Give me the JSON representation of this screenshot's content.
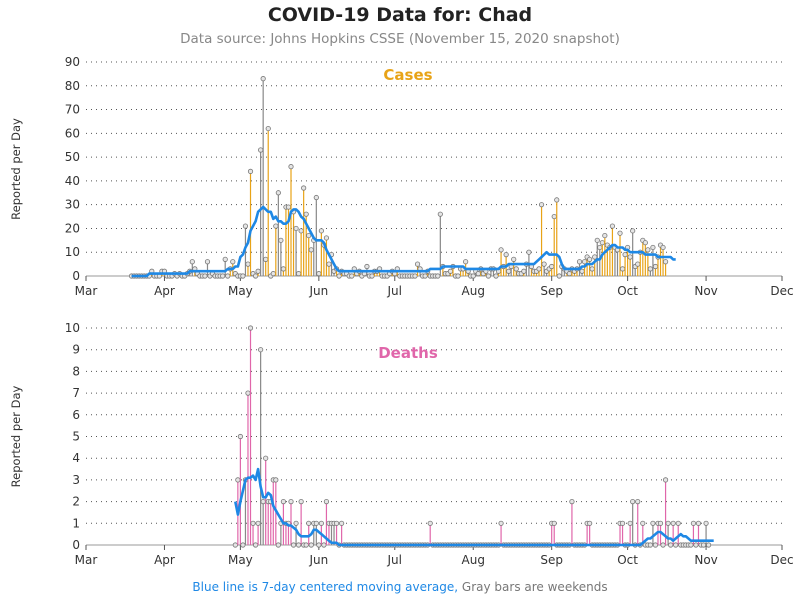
{
  "title": "COVID-19 Data for: Chad",
  "subtitle": "Data source: Johns Hopkins CSSE (November 15, 2020 snapshot)",
  "footer": {
    "blue_text": "Blue line is 7-day centered moving average,",
    "gray_text": " Gray bars are weekends"
  },
  "colors": {
    "cases": "#e8a317",
    "deaths": "#e066aa",
    "weekend": "#888888",
    "moving_average": "#1e88e5",
    "grid": "#555555"
  },
  "chart_data": [
    {
      "type": "bar",
      "title": "Cases",
      "ylabel": "Reported per Day",
      "ylim": [
        0,
        90
      ],
      "yticks": [
        0,
        10,
        20,
        30,
        40,
        50,
        60,
        70,
        80,
        90
      ],
      "xlim": [
        "2020-03-01",
        "2020-12-01"
      ],
      "xticks": [
        "Mar",
        "Apr",
        "May",
        "Jun",
        "Jul",
        "Aug",
        "Sep",
        "Oct",
        "Nov",
        "Dec"
      ],
      "grid": "horizontal dotted",
      "start_date": "2020-03-19",
      "series": [
        {
          "values": [
            0,
            0,
            0,
            0,
            0,
            0,
            0,
            0,
            2,
            0,
            0,
            0,
            2,
            2,
            0,
            0,
            0,
            1,
            0,
            1,
            0,
            0,
            1,
            2,
            6,
            3,
            1,
            0,
            0,
            0,
            6,
            0,
            1,
            0,
            0,
            0,
            0,
            7,
            0,
            3,
            6,
            1,
            0,
            0,
            0,
            21,
            5,
            44,
            1,
            0,
            2,
            53,
            83,
            7,
            62,
            0,
            1,
            21,
            35,
            15,
            3,
            29,
            29,
            46,
            27,
            20,
            1,
            19,
            37,
            26,
            17,
            11,
            15,
            33,
            1,
            19,
            13,
            16,
            5,
            9,
            2,
            3,
            0,
            2,
            1,
            1,
            0,
            0,
            3,
            1,
            2,
            0,
            1,
            4,
            0,
            0,
            2,
            2,
            3,
            0,
            0,
            0,
            1,
            2,
            1,
            3,
            0,
            0,
            0,
            0,
            0,
            0,
            0,
            5,
            3,
            0,
            0,
            2,
            0,
            0,
            0,
            0,
            26,
            4,
            1,
            1,
            2,
            4,
            0,
            0,
            3,
            3,
            6,
            2,
            0,
            0,
            2,
            1,
            3,
            1,
            2,
            0,
            3,
            3,
            0,
            2,
            11,
            4,
            9,
            2,
            4,
            7,
            3,
            1,
            1,
            2,
            5,
            10,
            4,
            2,
            2,
            3,
            30,
            5,
            2,
            3,
            4,
            25,
            32,
            0,
            4,
            3,
            2,
            1,
            3,
            2,
            3,
            6,
            2,
            6,
            8,
            7,
            3,
            8,
            15,
            12,
            14,
            17,
            13,
            12,
            21,
            12,
            11,
            18,
            3,
            9,
            12,
            8,
            19,
            4,
            5,
            10,
            15,
            14,
            11,
            3,
            12,
            4,
            8,
            13,
            12,
            6
          ],
          "moving_average": [
            0,
            0,
            0,
            0,
            0,
            0,
            0,
            1,
            1,
            1,
            1,
            1,
            1,
            1,
            1,
            1,
            1,
            1,
            1,
            1,
            1,
            1,
            1,
            2,
            2,
            2,
            2,
            2,
            2,
            2,
            2,
            2,
            2,
            2,
            2,
            2,
            2,
            2,
            3,
            3,
            3,
            4,
            4,
            8,
            9,
            12,
            14,
            19,
            21,
            23,
            27,
            28,
            29,
            28,
            27,
            27,
            24,
            25,
            23,
            23,
            22,
            22,
            23,
            27,
            28,
            28,
            27,
            25,
            24,
            22,
            20,
            18,
            16,
            15,
            15,
            15,
            14,
            11,
            9,
            7,
            5,
            3,
            2,
            2,
            2,
            2,
            2,
            2,
            2,
            2,
            2,
            2,
            2,
            2,
            2,
            2,
            2,
            2,
            2,
            2,
            2,
            2,
            2,
            2,
            2,
            2,
            2,
            2,
            2,
            2,
            2,
            2,
            2,
            2,
            2,
            2,
            2,
            2,
            3,
            3,
            3,
            3,
            3,
            4,
            4,
            4,
            4,
            4,
            4,
            4,
            4,
            4,
            3,
            3,
            3,
            3,
            3,
            3,
            3,
            3,
            3,
            3,
            3,
            3,
            3,
            3,
            4,
            4,
            4,
            5,
            5,
            5,
            5,
            5,
            5,
            5,
            5,
            5,
            5,
            5,
            6,
            7,
            8,
            9,
            10,
            9,
            9,
            9,
            9,
            8,
            5,
            3,
            3,
            3,
            3,
            3,
            3,
            3,
            4,
            4,
            5,
            5,
            5,
            6,
            7,
            7,
            9,
            10,
            11,
            12,
            13,
            13,
            12,
            12,
            12,
            11,
            11,
            10,
            10,
            10,
            10,
            10,
            10,
            9,
            9,
            9,
            9,
            9,
            8,
            8,
            8,
            8,
            8,
            8,
            7,
            7
          ]
        }
      ]
    },
    {
      "type": "bar",
      "title": "Deaths",
      "ylabel": "Reported per Day",
      "ylim": [
        0,
        10
      ],
      "yticks": [
        0,
        1,
        2,
        3,
        4,
        5,
        6,
        7,
        8,
        9,
        10
      ],
      "xlim": [
        "2020-03-01",
        "2020-12-01"
      ],
      "xticks": [
        "Mar",
        "Apr",
        "May",
        "Jun",
        "Jul",
        "Aug",
        "Sep",
        "Oct",
        "Nov",
        "Dec"
      ],
      "grid": "horizontal dotted",
      "start_date": "2020-04-29",
      "series": [
        {
          "values": [
            0,
            3,
            5,
            0,
            3,
            7,
            10,
            1,
            0,
            1,
            9,
            2,
            4,
            2,
            2,
            3,
            3,
            0,
            1,
            2,
            1,
            1,
            2,
            0,
            1,
            0,
            2,
            0,
            0,
            1,
            0,
            1,
            1,
            0,
            1,
            0,
            2,
            1,
            1,
            1,
            1,
            0,
            1,
            0,
            0,
            0,
            0,
            0,
            0,
            0,
            0,
            0,
            0,
            0,
            0,
            0,
            0,
            0,
            0,
            0,
            0,
            0,
            0,
            0,
            0,
            0,
            0,
            0,
            0,
            0,
            0,
            0,
            0,
            0,
            0,
            0,
            0,
            1,
            0,
            0,
            0,
            0,
            0,
            0,
            0,
            0,
            0,
            0,
            0,
            0,
            0,
            0,
            0,
            0,
            0,
            0,
            0,
            0,
            0,
            0,
            0,
            0,
            0,
            0,
            0,
            1,
            0,
            0,
            0,
            0,
            0,
            0,
            0,
            0,
            0,
            0,
            0,
            0,
            0,
            0,
            0,
            0,
            0,
            0,
            0,
            1,
            1,
            0,
            0,
            0,
            0,
            0,
            0,
            2,
            0,
            0,
            0,
            0,
            0,
            1,
            1,
            0,
            0,
            0,
            0,
            0,
            0,
            0,
            0,
            0,
            0,
            0,
            1,
            1,
            0,
            0,
            1,
            2,
            0,
            2,
            0,
            1,
            0,
            0,
            0,
            1,
            0,
            1,
            1,
            0,
            3,
            1,
            0,
            1,
            0,
            1,
            0,
            0,
            0,
            0,
            0,
            1,
            0,
            1,
            0,
            0,
            1,
            0
          ],
          "moving_average": [
            2,
            1.4,
            2,
            2.5,
            3,
            3.1,
            3.1,
            3.2,
            3,
            3.5,
            2.7,
            2.2,
            2.2,
            2.4,
            2.3,
            1.8,
            1.6,
            1.4,
            1.2,
            1,
            1,
            0.9,
            0.9,
            0.8,
            0.7,
            0.5,
            0.4,
            0.4,
            0.4,
            0.4,
            0.5,
            0.7,
            0.7,
            0.6,
            0.5,
            0.4,
            0.3,
            0.2,
            0.1,
            0.1,
            0.1,
            0,
            0,
            0,
            0,
            0,
            0,
            0,
            0,
            0,
            0,
            0,
            0,
            0,
            0,
            0,
            0,
            0,
            0,
            0,
            0,
            0,
            0,
            0,
            0,
            0,
            0,
            0,
            0,
            0,
            0,
            0,
            0,
            0,
            0,
            0,
            0,
            0,
            0,
            0,
            0,
            0,
            0,
            0,
            0,
            0,
            0,
            0,
            0,
            0,
            0,
            0,
            0,
            0,
            0,
            0,
            0,
            0,
            0,
            0,
            0,
            0,
            0,
            0,
            0,
            0,
            0,
            0,
            0,
            0,
            0,
            0,
            0,
            0,
            0,
            0,
            0,
            0,
            0,
            0,
            0,
            0,
            0,
            0,
            0,
            0,
            0,
            0,
            0,
            0,
            0,
            0,
            0,
            0,
            0,
            0,
            0,
            0,
            0,
            0,
            0,
            0,
            0,
            0,
            0,
            0,
            0,
            0,
            0,
            0,
            0,
            0,
            0,
            0,
            0,
            0,
            0,
            0,
            0,
            0,
            0,
            0.1,
            0.2,
            0.3,
            0.3,
            0.4,
            0.5,
            0.6,
            0.6,
            0.5,
            0.4,
            0.3,
            0.3,
            0.2,
            0.3,
            0.4,
            0.5,
            0.4,
            0.4,
            0.3,
            0.2,
            0.2,
            0.2,
            0.2,
            0.2,
            0.2,
            0.2,
            0.2,
            0.2,
            0.2
          ]
        }
      ]
    }
  ]
}
